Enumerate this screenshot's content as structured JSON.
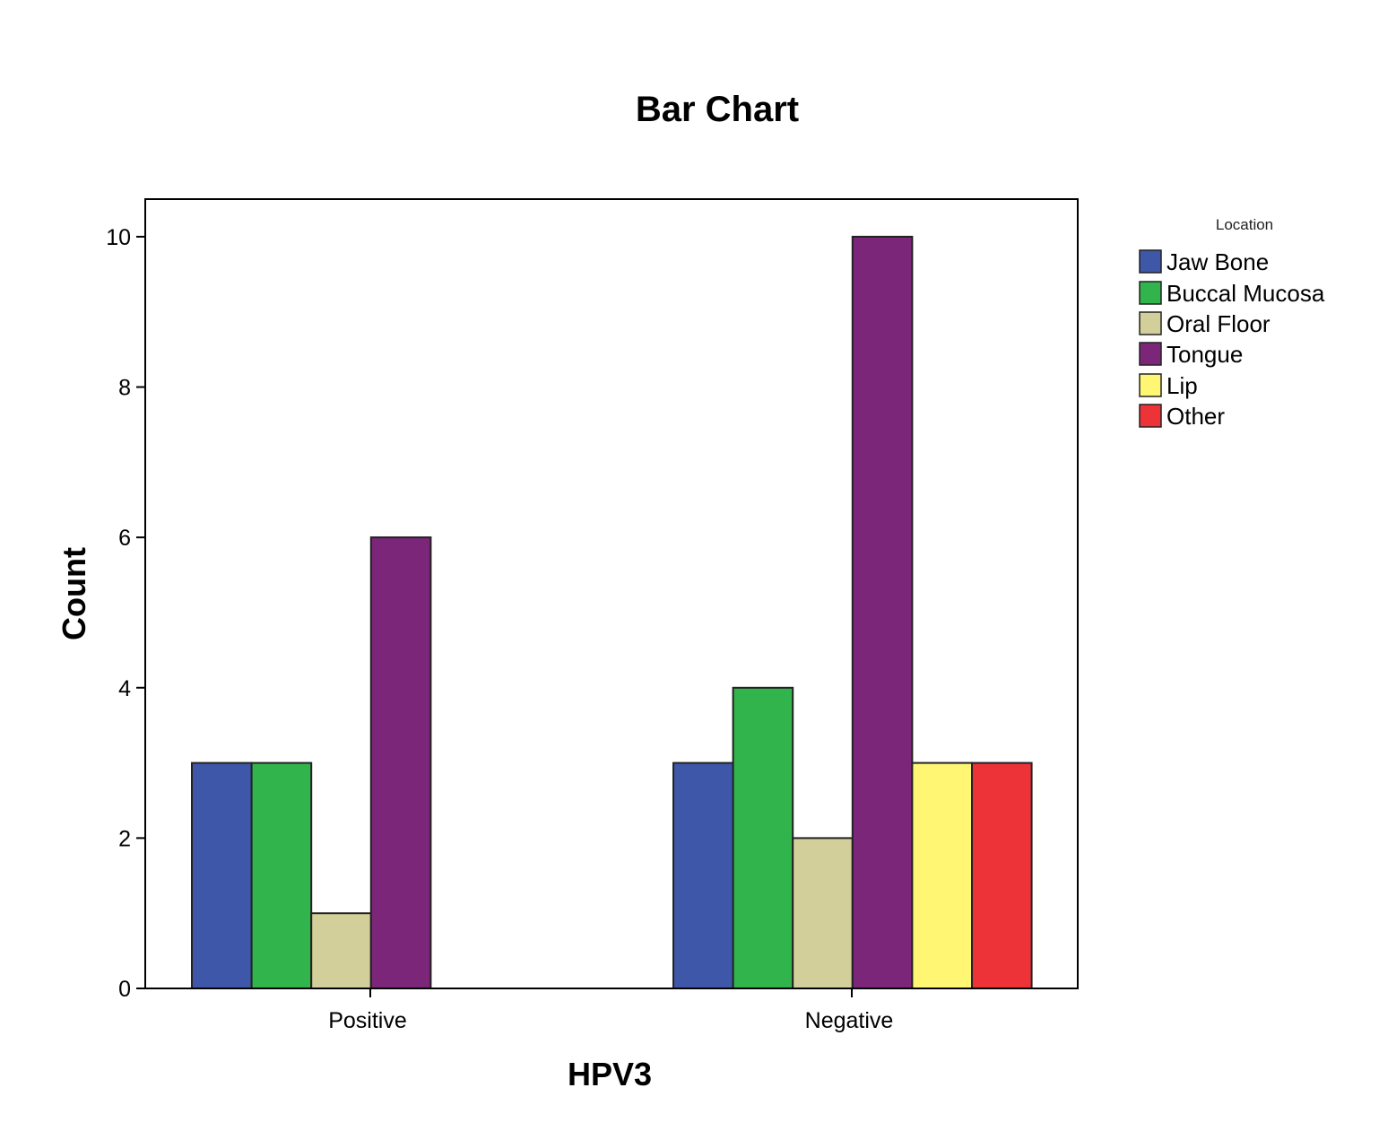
{
  "chart_data": {
    "type": "bar",
    "title": "Bar Chart",
    "xlabel": "HPV3",
    "ylabel": "Count",
    "categories": [
      "Positive",
      "Negative"
    ],
    "ylim": [
      0,
      10.5
    ],
    "yticks": [
      0,
      2,
      4,
      6,
      8,
      10
    ],
    "grid": false,
    "legend": {
      "title": "Location",
      "position": "right"
    },
    "series": [
      {
        "name": "Jaw Bone",
        "color": "#3f57a8",
        "values": [
          3,
          3
        ]
      },
      {
        "name": "Buccal Mucosa",
        "color": "#31b44b",
        "values": [
          3,
          4
        ]
      },
      {
        "name": "Oral Floor",
        "color": "#d3cf9b",
        "values": [
          1,
          2
        ]
      },
      {
        "name": "Tongue",
        "color": "#7b2679",
        "values": [
          6,
          10
        ]
      },
      {
        "name": "Lip",
        "color": "#fff774",
        "values": [
          0,
          3
        ]
      },
      {
        "name": "Other",
        "color": "#ee3338",
        "values": [
          0,
          3
        ]
      }
    ]
  }
}
